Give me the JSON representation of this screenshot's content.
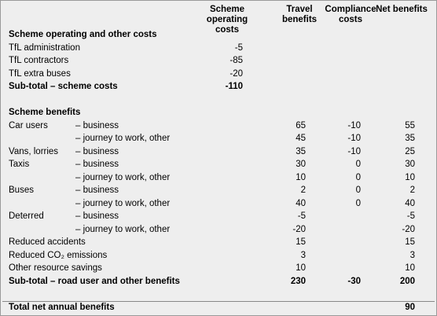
{
  "table": {
    "columns": [
      "Scheme operating costs",
      "Travel benefits",
      "Compliance costs",
      "Net benefits"
    ],
    "sections": [
      {
        "title": "Scheme operating and other costs",
        "rows": [
          {
            "label": "TfL administration",
            "values": [
              -5,
              null,
              null,
              null
            ]
          },
          {
            "label": "TfL contractors",
            "values": [
              -85,
              null,
              null,
              null
            ]
          },
          {
            "label": "TfL extra buses",
            "values": [
              -20,
              null,
              null,
              null
            ]
          }
        ],
        "subtotal": {
          "label": "Sub-total – scheme costs",
          "values": [
            -110,
            null,
            null,
            null
          ]
        }
      },
      {
        "title": "Scheme benefits",
        "rows": [
          {
            "group": "Car users",
            "item": "– business",
            "values": [
              null,
              65,
              -10,
              55
            ]
          },
          {
            "item": "– journey to work, other",
            "values": [
              null,
              45,
              -10,
              35
            ]
          },
          {
            "group": "Vans, lorries",
            "item": "– business",
            "values": [
              null,
              35,
              -10,
              25
            ]
          },
          {
            "group": "Taxis",
            "item": "– business",
            "values": [
              null,
              30,
              0,
              30
            ]
          },
          {
            "item": "– journey to work, other",
            "values": [
              null,
              10,
              0,
              10
            ]
          },
          {
            "group": "Buses",
            "item": "– business",
            "values": [
              null,
              2,
              0,
              2
            ]
          },
          {
            "item": "– journey to work, other",
            "values": [
              null,
              40,
              0,
              40
            ]
          },
          {
            "group": "Deterred",
            "item": "– business",
            "values": [
              null,
              -5,
              null,
              -5
            ]
          },
          {
            "item": "– journey to work, other",
            "values": [
              null,
              -20,
              null,
              -20
            ]
          },
          {
            "label": "Reduced accidents",
            "values": [
              null,
              15,
              null,
              15
            ]
          },
          {
            "label": "Reduced CO₂ emissions",
            "values": [
              null,
              3,
              null,
              3
            ]
          },
          {
            "label": "Other resource savings",
            "values": [
              null,
              10,
              null,
              10
            ]
          }
        ],
        "subtotal": {
          "label": "Sub-total – road user and other benefits",
          "values": [
            null,
            230,
            -30,
            200
          ]
        }
      }
    ],
    "total": {
      "label": "Total net annual benefits",
      "values": [
        null,
        null,
        null,
        90
      ]
    }
  }
}
